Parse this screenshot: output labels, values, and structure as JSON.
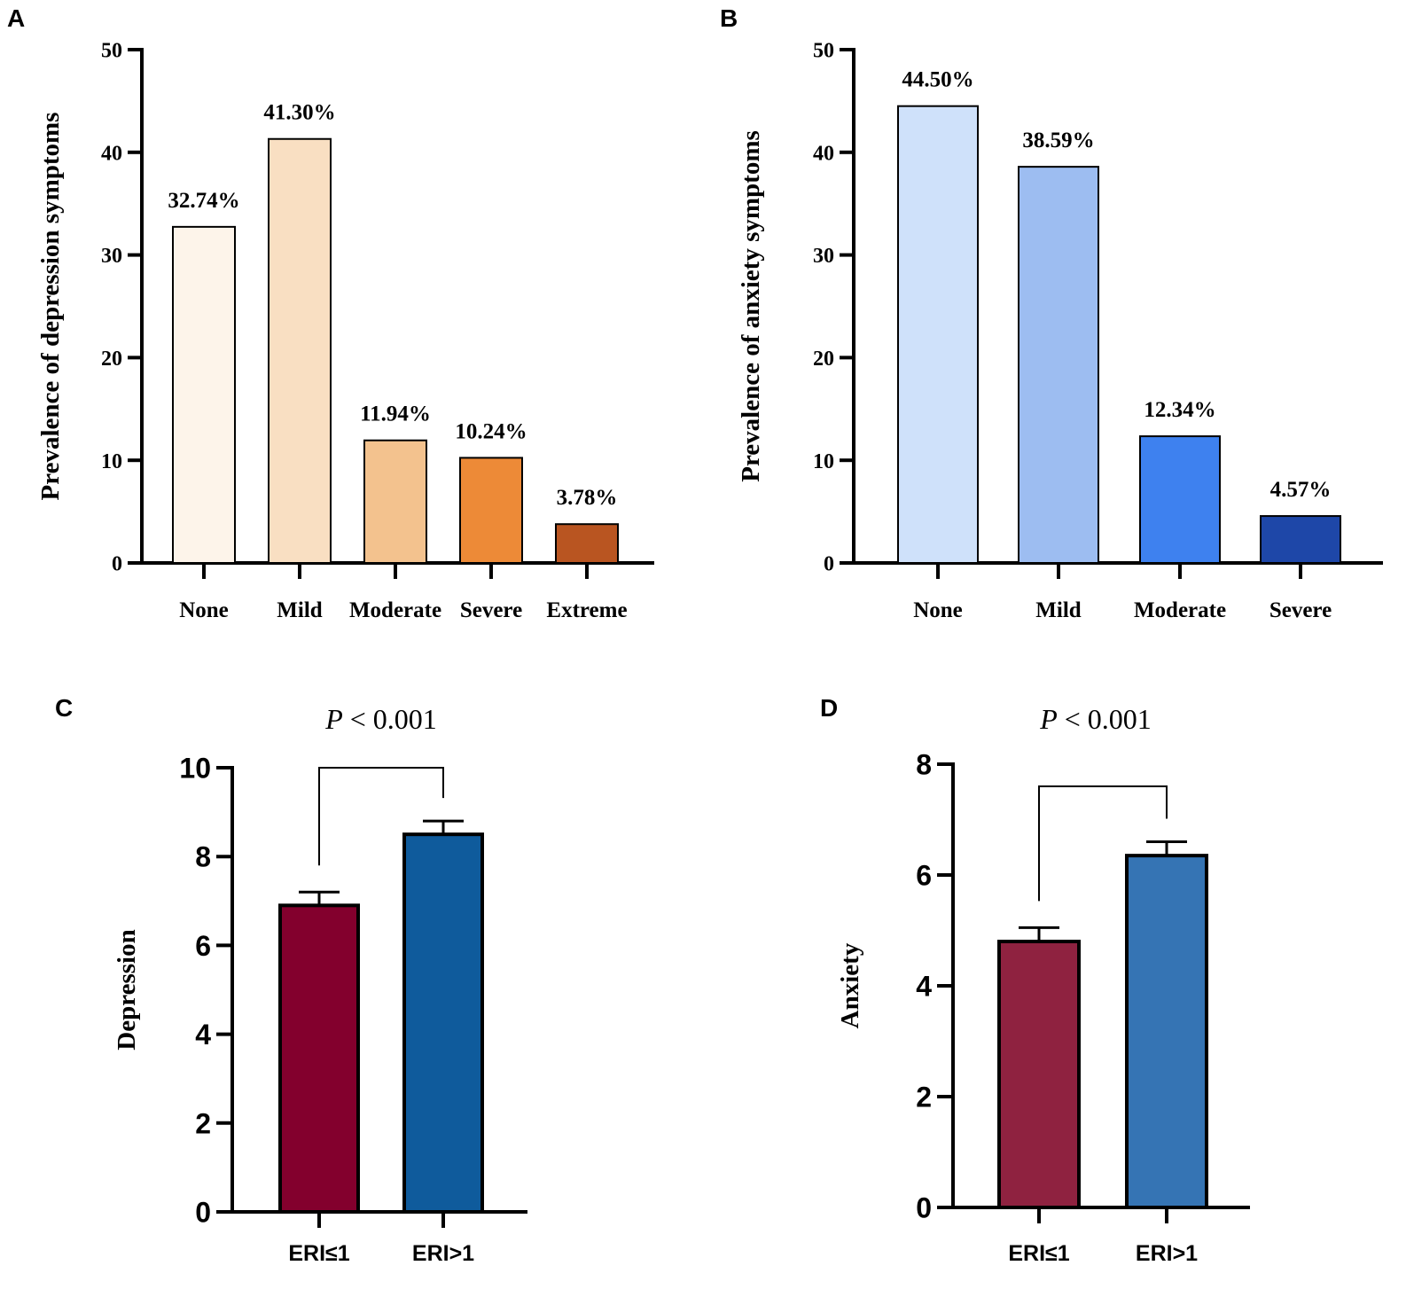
{
  "chart_data": [
    {
      "panel": "A",
      "type": "bar",
      "ylabel": "Prevalence of depression symptoms",
      "xlabel": "",
      "ylim": [
        0,
        50
      ],
      "yticks": [
        0,
        10,
        20,
        30,
        40,
        50
      ],
      "categories": [
        "None",
        "Mild",
        "Moderate",
        "Severe",
        "Extreme"
      ],
      "values": [
        32.74,
        41.3,
        11.94,
        10.24,
        3.78
      ],
      "data_labels": [
        "32.74%",
        "41.30%",
        "11.94%",
        "10.24%",
        "3.78%"
      ],
      "colors": [
        "#fdf4ea",
        "#f9dfc2",
        "#f3c28e",
        "#ed8a37",
        "#b95521"
      ]
    },
    {
      "panel": "B",
      "type": "bar",
      "ylabel": "Prevalence of anxiety symptoms",
      "xlabel": "",
      "ylim": [
        0,
        50
      ],
      "yticks": [
        0,
        10,
        20,
        30,
        40,
        50
      ],
      "categories": [
        "None",
        "Mild",
        "Moderate",
        "Severe"
      ],
      "values": [
        44.5,
        38.59,
        12.34,
        4.57
      ],
      "data_labels": [
        "44.50%",
        "38.59%",
        "12.34%",
        "4.57%"
      ],
      "colors": [
        "#cfe1fa",
        "#9dbdf1",
        "#3e81ef",
        "#1e47a8"
      ]
    },
    {
      "panel": "C",
      "type": "bar",
      "title_prefix": "P",
      "title_rest": " < 0.001",
      "ylabel": "Depression",
      "xlabel": "",
      "ylim": [
        0,
        10
      ],
      "yticks": [
        0,
        2,
        4,
        6,
        8,
        10
      ],
      "categories": [
        "ERI≤1",
        "ERI>1"
      ],
      "values": [
        6.9,
        8.5
      ],
      "error_upper": [
        7.2,
        8.8
      ],
      "bracket_height": 10,
      "colors": [
        "#83002d",
        "#0f5b9c"
      ]
    },
    {
      "panel": "D",
      "type": "bar",
      "title_prefix": "P",
      "title_rest": " < 0.001",
      "ylabel": "Anxiety",
      "xlabel": "",
      "ylim": [
        0,
        8
      ],
      "yticks": [
        0,
        2,
        4,
        6,
        8
      ],
      "categories": [
        "ERI≤1",
        "ERI>1"
      ],
      "values": [
        4.8,
        6.35
      ],
      "error_upper": [
        5.05,
        6.6
      ],
      "bracket_height": 7.6,
      "colors": [
        "#8f2240",
        "#3574b4"
      ]
    }
  ]
}
